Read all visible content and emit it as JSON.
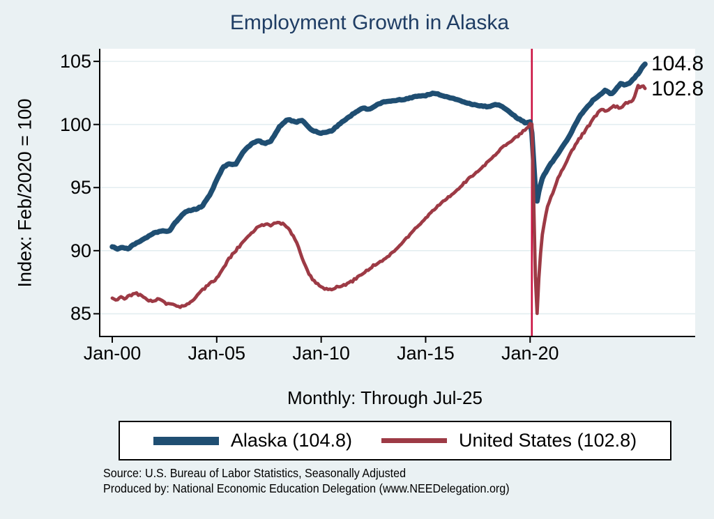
{
  "title": "Employment Growth in Alaska",
  "colors": {
    "background": "#eaf1f3",
    "plot_background": "#ffffff",
    "gridline": "#e3edf0",
    "title_text": "#1f3d64",
    "alaska_line": "#1f4e72",
    "us_line": "#9d3a45",
    "covid_vline": "#cb1141",
    "axis_text": "#000000"
  },
  "legend": {
    "items": [
      {
        "label": "Alaska (104.8)"
      },
      {
        "label": "United States (102.8)"
      }
    ]
  },
  "notes": {
    "line1": "Source: U.S. Bureau of Labor Statistics, Seasonally Adjusted",
    "line2": "Produced by: National Economic Education Delegation (www.NEEDelegation.org)"
  },
  "chart_data": {
    "type": "line",
    "title": "Employment Growth in Alaska",
    "xlabel": "Monthly: Through Jul-25",
    "ylabel": "Index: Feb/2020 = 100",
    "xlim": [
      1999.4,
      2027.9
    ],
    "ylim": [
      83.2,
      106.0
    ],
    "grid": "horizontal",
    "legend_position": "bottom",
    "y_ticks": [
      85,
      90,
      95,
      100,
      105
    ],
    "x_ticks": [
      {
        "label": "Jan-00",
        "t": 2000
      },
      {
        "label": "Jan-05",
        "t": 2005
      },
      {
        "label": "Jan-10",
        "t": 2010
      },
      {
        "label": "Jan-15",
        "t": 2015
      },
      {
        "label": "Jan-20",
        "t": 2020
      }
    ],
    "vline": {
      "t": 2020.083,
      "meaning": "Feb-2020"
    },
    "series": [
      {
        "name": "Alaska (104.8)",
        "end_label": "104.8",
        "points": [
          [
            2000.0,
            90.3
          ],
          [
            2000.25,
            90.15
          ],
          [
            2000.5,
            90.25
          ],
          [
            2000.75,
            90.15
          ],
          [
            2001.0,
            90.45
          ],
          [
            2001.5,
            90.9
          ],
          [
            2002.0,
            91.4
          ],
          [
            2002.4,
            91.6
          ],
          [
            2002.7,
            91.5
          ],
          [
            2003.0,
            92.2
          ],
          [
            2003.5,
            93.1
          ],
          [
            2004.0,
            93.3
          ],
          [
            2004.3,
            93.5
          ],
          [
            2004.7,
            94.5
          ],
          [
            2005.0,
            95.6
          ],
          [
            2005.3,
            96.6
          ],
          [
            2005.6,
            96.9
          ],
          [
            2005.9,
            96.8
          ],
          [
            2006.3,
            97.9
          ],
          [
            2006.7,
            98.5
          ],
          [
            2007.0,
            98.7
          ],
          [
            2007.3,
            98.5
          ],
          [
            2007.6,
            98.7
          ],
          [
            2008.0,
            99.8
          ],
          [
            2008.4,
            100.4
          ],
          [
            2008.8,
            100.2
          ],
          [
            2009.1,
            100.3
          ],
          [
            2009.5,
            99.6
          ],
          [
            2010.0,
            99.3
          ],
          [
            2010.5,
            99.5
          ],
          [
            2011.0,
            100.2
          ],
          [
            2011.5,
            100.8
          ],
          [
            2012.0,
            101.3
          ],
          [
            2012.3,
            101.2
          ],
          [
            2012.7,
            101.6
          ],
          [
            2013.0,
            101.8
          ],
          [
            2013.5,
            101.9
          ],
          [
            2014.0,
            102.0
          ],
          [
            2014.5,
            102.2
          ],
          [
            2015.0,
            102.3
          ],
          [
            2015.4,
            102.5
          ],
          [
            2015.8,
            102.3
          ],
          [
            2016.2,
            102.1
          ],
          [
            2016.6,
            101.9
          ],
          [
            2017.0,
            101.7
          ],
          [
            2017.5,
            101.5
          ],
          [
            2018.0,
            101.4
          ],
          [
            2018.3,
            101.6
          ],
          [
            2018.6,
            101.5
          ],
          [
            2019.0,
            101.0
          ],
          [
            2019.4,
            100.5
          ],
          [
            2019.8,
            100.1
          ],
          [
            2020.05,
            100.2
          ],
          [
            2020.17,
            97.0
          ],
          [
            2020.3,
            93.6
          ],
          [
            2020.45,
            95.0
          ],
          [
            2020.6,
            95.8
          ],
          [
            2020.8,
            96.4
          ],
          [
            2021.0,
            96.9
          ],
          [
            2021.3,
            97.6
          ],
          [
            2021.6,
            98.4
          ],
          [
            2021.9,
            99.1
          ],
          [
            2022.1,
            99.8
          ],
          [
            2022.4,
            100.7
          ],
          [
            2022.7,
            101.3
          ],
          [
            2023.0,
            101.9
          ],
          [
            2023.3,
            102.3
          ],
          [
            2023.6,
            102.7
          ],
          [
            2023.9,
            102.4
          ],
          [
            2024.1,
            102.8
          ],
          [
            2024.35,
            103.3
          ],
          [
            2024.5,
            103.1
          ],
          [
            2024.75,
            103.3
          ],
          [
            2025.0,
            103.7
          ],
          [
            2025.2,
            104.1
          ],
          [
            2025.35,
            104.5
          ],
          [
            2025.5,
            104.8
          ]
        ]
      },
      {
        "name": "United States (102.8)",
        "end_label": "102.8",
        "points": [
          [
            2000.0,
            86.2
          ],
          [
            2000.2,
            86.0
          ],
          [
            2000.4,
            86.35
          ],
          [
            2000.6,
            86.15
          ],
          [
            2000.8,
            86.4
          ],
          [
            2001.1,
            86.65
          ],
          [
            2001.4,
            86.4
          ],
          [
            2001.7,
            86.1
          ],
          [
            2002.0,
            86.0
          ],
          [
            2002.3,
            86.2
          ],
          [
            2002.6,
            85.8
          ],
          [
            2002.9,
            85.7
          ],
          [
            2003.2,
            85.5
          ],
          [
            2003.5,
            85.7
          ],
          [
            2003.8,
            86.0
          ],
          [
            2004.1,
            86.5
          ],
          [
            2004.4,
            87.0
          ],
          [
            2004.7,
            87.4
          ],
          [
            2005.0,
            87.8
          ],
          [
            2005.3,
            88.5
          ],
          [
            2005.6,
            89.4
          ],
          [
            2006.0,
            90.2
          ],
          [
            2006.3,
            90.7
          ],
          [
            2006.6,
            91.3
          ],
          [
            2007.0,
            91.9
          ],
          [
            2007.3,
            92.1
          ],
          [
            2007.6,
            92.0
          ],
          [
            2007.9,
            92.3
          ],
          [
            2008.2,
            92.1
          ],
          [
            2008.5,
            91.6
          ],
          [
            2008.8,
            90.8
          ],
          [
            2009.1,
            89.4
          ],
          [
            2009.4,
            88.2
          ],
          [
            2009.7,
            87.5
          ],
          [
            2010.0,
            87.1
          ],
          [
            2010.3,
            86.9
          ],
          [
            2010.6,
            87.0
          ],
          [
            2010.9,
            87.2
          ],
          [
            2011.2,
            87.3
          ],
          [
            2011.5,
            87.6
          ],
          [
            2012.0,
            88.2
          ],
          [
            2012.5,
            88.8
          ],
          [
            2013.0,
            89.3
          ],
          [
            2013.5,
            90.0
          ],
          [
            2014.0,
            90.8
          ],
          [
            2014.5,
            91.7
          ],
          [
            2015.0,
            92.6
          ],
          [
            2015.5,
            93.4
          ],
          [
            2016.0,
            94.1
          ],
          [
            2016.5,
            94.8
          ],
          [
            2017.0,
            95.6
          ],
          [
            2017.5,
            96.3
          ],
          [
            2018.0,
            97.1
          ],
          [
            2018.5,
            97.9
          ],
          [
            2019.0,
            98.6
          ],
          [
            2019.5,
            99.2
          ],
          [
            2019.9,
            99.8
          ],
          [
            2020.08,
            100.2
          ],
          [
            2020.2,
            92.0
          ],
          [
            2020.3,
            83.8
          ],
          [
            2020.45,
            89.0
          ],
          [
            2020.6,
            91.5
          ],
          [
            2020.8,
            93.3
          ],
          [
            2021.0,
            94.2
          ],
          [
            2021.3,
            95.6
          ],
          [
            2021.6,
            96.6
          ],
          [
            2021.9,
            97.6
          ],
          [
            2022.2,
            98.5
          ],
          [
            2022.5,
            99.2
          ],
          [
            2022.8,
            99.9
          ],
          [
            2023.1,
            100.6
          ],
          [
            2023.4,
            101.2
          ],
          [
            2023.7,
            101.0
          ],
          [
            2024.0,
            101.5
          ],
          [
            2024.3,
            101.3
          ],
          [
            2024.6,
            101.7
          ],
          [
            2024.9,
            101.9
          ],
          [
            2025.05,
            102.3
          ],
          [
            2025.15,
            103.2
          ],
          [
            2025.3,
            102.9
          ],
          [
            2025.4,
            103.1
          ],
          [
            2025.5,
            102.8
          ]
        ]
      }
    ]
  }
}
